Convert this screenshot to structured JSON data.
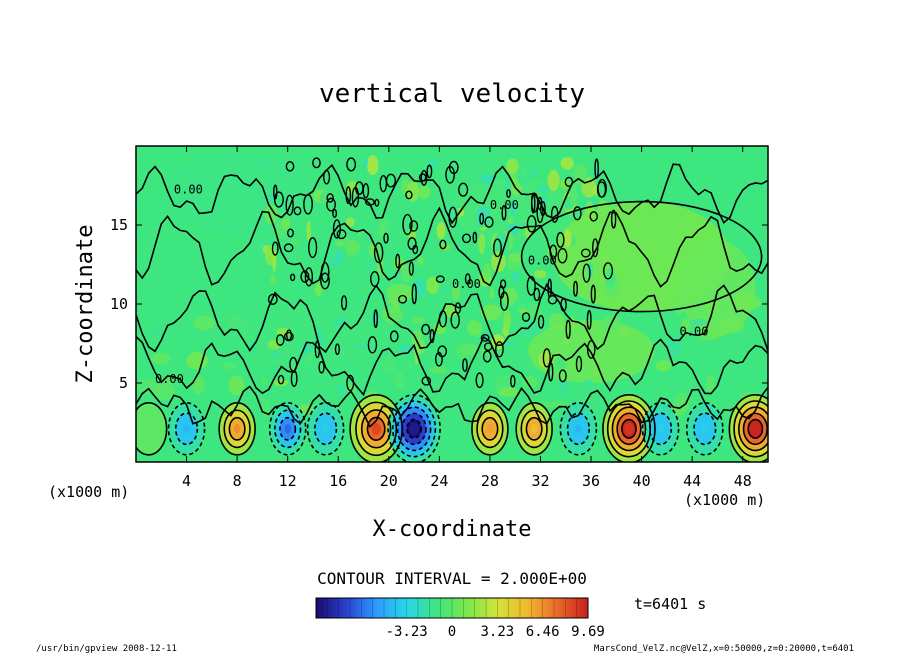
{
  "chart_data": {
    "type": "heatmap",
    "title": "vertical velocity",
    "xlabel": "X-coordinate",
    "ylabel": "Z-coordinate",
    "x_unit_left": "(x1000 m)",
    "x_unit_right": "(x1000 m)",
    "xlim": [
      0,
      50
    ],
    "ylim": [
      0,
      20
    ],
    "x_ticks": [
      "4",
      "8",
      "12",
      "16",
      "20",
      "24",
      "28",
      "32",
      "36",
      "40",
      "44",
      "48"
    ],
    "y_ticks": [
      "5",
      "10",
      "15"
    ],
    "contour_interval_text": "CONTOUR INTERVAL = 2.000E+00",
    "contour_labels": [
      "0.00",
      "0.00",
      "0.00",
      "0.00",
      "0.00",
      "0.00"
    ],
    "colorbar": {
      "min": -9.69,
      "max": 9.69,
      "tick_labels": [
        "-3.23",
        "0",
        "3.23",
        "6.46",
        "9.69"
      ],
      "colors": [
        "#1a0a6e",
        "#2a3fd0",
        "#2f9bff",
        "#27d7e8",
        "#3ee680",
        "#7be84a",
        "#d4e23a",
        "#f0b830",
        "#e86a28",
        "#c81e1e"
      ]
    },
    "time_text": "t=6401 s",
    "cells_at_z_2km": [
      {
        "x": 1,
        "w": 0.0
      },
      {
        "x": 4,
        "w": -4.5
      },
      {
        "x": 8,
        "w": 6.5
      },
      {
        "x": 12,
        "w": -6.5
      },
      {
        "x": 15,
        "w": -3.5
      },
      {
        "x": 19,
        "w": 8.5
      },
      {
        "x": 22,
        "w": -9.0
      },
      {
        "x": 28,
        "w": 6.0
      },
      {
        "x": 31.5,
        "w": 5.0
      },
      {
        "x": 35,
        "w": -4.5
      },
      {
        "x": 39,
        "w": 9.0
      },
      {
        "x": 41.5,
        "w": -3.5
      },
      {
        "x": 45,
        "w": -3.5
      },
      {
        "x": 49,
        "w": 9.5
      }
    ],
    "colors": {
      "background_field": "#3ee680",
      "contour_line": "#000000"
    }
  },
  "footer": {
    "left": "/usr/bin/gpview   2008-12-11",
    "right": "MarsCond_VelZ.nc@VelZ,x=0:50000,z=0:20000,t=6401"
  }
}
